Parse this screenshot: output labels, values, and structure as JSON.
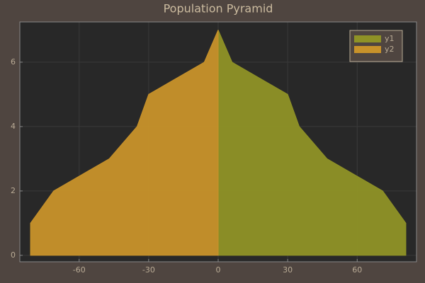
{
  "chart_data": {
    "type": "area",
    "orientation": "horizontal",
    "title": "Population Pyramid",
    "y": [
      0,
      1,
      2,
      3,
      4,
      5,
      6,
      7
    ],
    "series": [
      {
        "name": "y1",
        "color": "#8f9226",
        "values": [
          81,
          81,
          71,
          47,
          35,
          30,
          6,
          0
        ]
      },
      {
        "name": "y2",
        "color": "#c8922a",
        "values": [
          -81,
          -81,
          -71,
          -47,
          -35,
          -30,
          -6,
          0
        ]
      }
    ],
    "xlim": [
      -85.6,
      85.6
    ],
    "xticks": [
      -60,
      -30,
      0,
      30,
      60
    ],
    "ylim": [
      -0.2,
      7.25
    ],
    "yticks": [
      0,
      2,
      4,
      6
    ],
    "grid": true,
    "legend": "top-right"
  }
}
